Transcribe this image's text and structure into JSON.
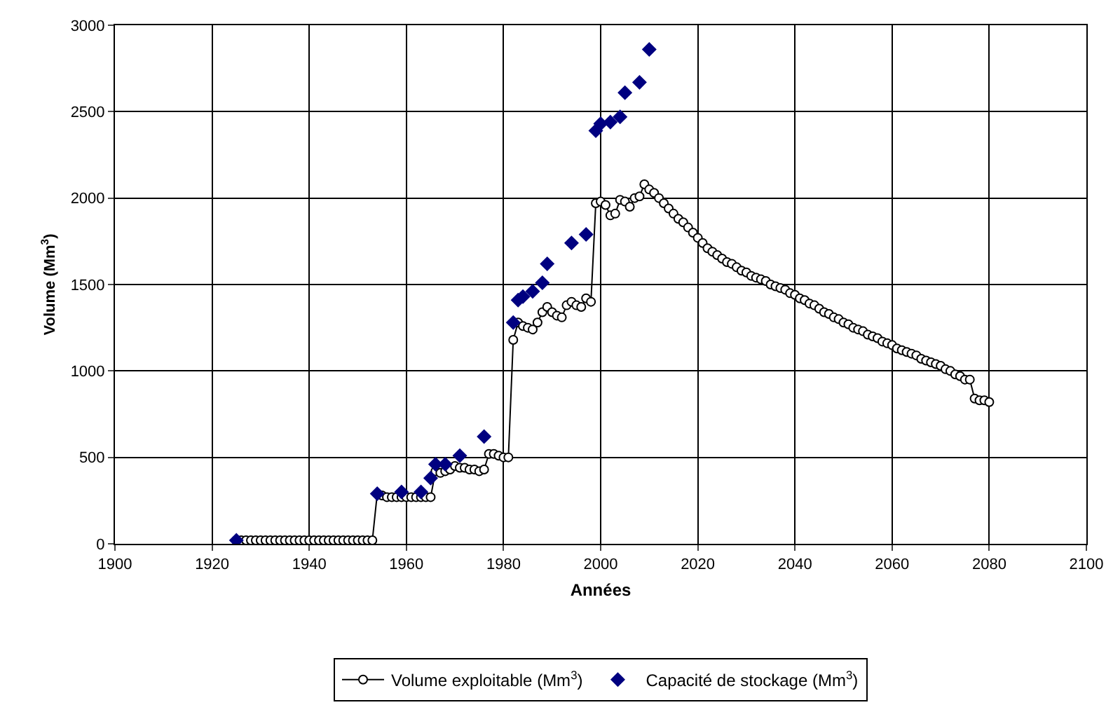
{
  "chart_data": {
    "type": "line",
    "xlabel": "Années",
    "ylabel": "Volume (Mm$^{3}$)",
    "xlim": [
      1900,
      2100
    ],
    "xticks": [
      1900,
      1920,
      1940,
      1960,
      1980,
      2000,
      2020,
      2040,
      2060,
      2080,
      2100
    ],
    "ylim": [
      0,
      3000
    ],
    "yticks": [
      0,
      500,
      1000,
      1500,
      2000,
      2500,
      3000
    ],
    "grid": true,
    "legend": "bottom",
    "series": [
      {
        "name": "Volume exploitable (Mm$^{3}$)",
        "color": "#000000",
        "marker": "circle",
        "x": [
          1925,
          1926,
          1927,
          1928,
          1929,
          1930,
          1931,
          1932,
          1933,
          1934,
          1935,
          1936,
          1937,
          1938,
          1939,
          1940,
          1941,
          1942,
          1943,
          1944,
          1945,
          1946,
          1947,
          1948,
          1949,
          1950,
          1951,
          1952,
          1953,
          1954,
          1955,
          1956,
          1957,
          1958,
          1959,
          1960,
          1961,
          1962,
          1963,
          1964,
          1965,
          1966,
          1967,
          1968,
          1969,
          1970,
          1971,
          1972,
          1973,
          1974,
          1975,
          1976,
          1977,
          1978,
          1979,
          1980,
          1981,
          1982,
          1983,
          1984,
          1985,
          1986,
          1987,
          1988,
          1989,
          1990,
          1991,
          1992,
          1993,
          1994,
          1995,
          1996,
          1997,
          1998,
          1999,
          2000,
          2001,
          2002,
          2003,
          2004,
          2005,
          2006,
          2007,
          2008,
          2009,
          2010,
          2011,
          2012,
          2013,
          2014,
          2015,
          2016,
          2017,
          2018,
          2019,
          2020,
          2021,
          2022,
          2023,
          2024,
          2025,
          2026,
          2027,
          2028,
          2029,
          2030,
          2031,
          2032,
          2033,
          2034,
          2035,
          2036,
          2037,
          2038,
          2039,
          2040,
          2041,
          2042,
          2043,
          2044,
          2045,
          2046,
          2047,
          2048,
          2049,
          2050,
          2051,
          2052,
          2053,
          2054,
          2055,
          2056,
          2057,
          2058,
          2059,
          2060,
          2061,
          2062,
          2063,
          2064,
          2065,
          2066,
          2067,
          2068,
          2069,
          2070,
          2071,
          2072,
          2073,
          2074,
          2075,
          2076,
          2077,
          2078,
          2079,
          2080
        ],
        "values": [
          20,
          20,
          20,
          20,
          20,
          20,
          20,
          20,
          20,
          20,
          20,
          20,
          20,
          20,
          20,
          20,
          20,
          20,
          20,
          20,
          20,
          20,
          20,
          20,
          20,
          20,
          20,
          20,
          20,
          290,
          280,
          270,
          270,
          270,
          270,
          270,
          270,
          270,
          270,
          270,
          270,
          420,
          410,
          420,
          430,
          450,
          440,
          440,
          430,
          430,
          420,
          430,
          520,
          520,
          510,
          500,
          500,
          1180,
          1280,
          1260,
          1250,
          1240,
          1280,
          1340,
          1370,
          1340,
          1320,
          1310,
          1380,
          1400,
          1380,
          1370,
          1420,
          1400,
          1970,
          1980,
          1960,
          1900,
          1910,
          1990,
          1980,
          1950,
          2000,
          2010,
          2080,
          2050,
          2030,
          2000,
          1970,
          1940,
          1910,
          1880,
          1860,
          1830,
          1800,
          1770,
          1740,
          1710,
          1690,
          1670,
          1650,
          1630,
          1620,
          1600,
          1580,
          1570,
          1550,
          1540,
          1530,
          1520,
          1500,
          1490,
          1480,
          1470,
          1450,
          1440,
          1420,
          1410,
          1390,
          1380,
          1360,
          1340,
          1330,
          1310,
          1300,
          1280,
          1270,
          1250,
          1240,
          1230,
          1210,
          1200,
          1190,
          1170,
          1160,
          1150,
          1130,
          1120,
          1110,
          1100,
          1090,
          1070,
          1060,
          1050,
          1040,
          1030,
          1010,
          1000,
          980,
          970,
          950,
          950,
          840,
          830,
          830,
          820
        ]
      },
      {
        "name": "Capacité de stockage (Mm$^{3}$)",
        "type": "scatter",
        "color": "#000080",
        "marker": "diamond",
        "x": [
          1925,
          1954,
          1959,
          1963,
          1965,
          1966,
          1968,
          1971,
          1976,
          1982,
          1983,
          1984,
          1986,
          1988,
          1989,
          1994,
          1997,
          1999,
          2000,
          2002,
          2004,
          2005,
          2008,
          2010
        ],
        "values": [
          20,
          290,
          300,
          300,
          380,
          460,
          460,
          510,
          620,
          1280,
          1410,
          1430,
          1460,
          1510,
          1620,
          1740,
          1790,
          2390,
          2430,
          2440,
          2470,
          2610,
          2670,
          2860
        ]
      }
    ]
  }
}
